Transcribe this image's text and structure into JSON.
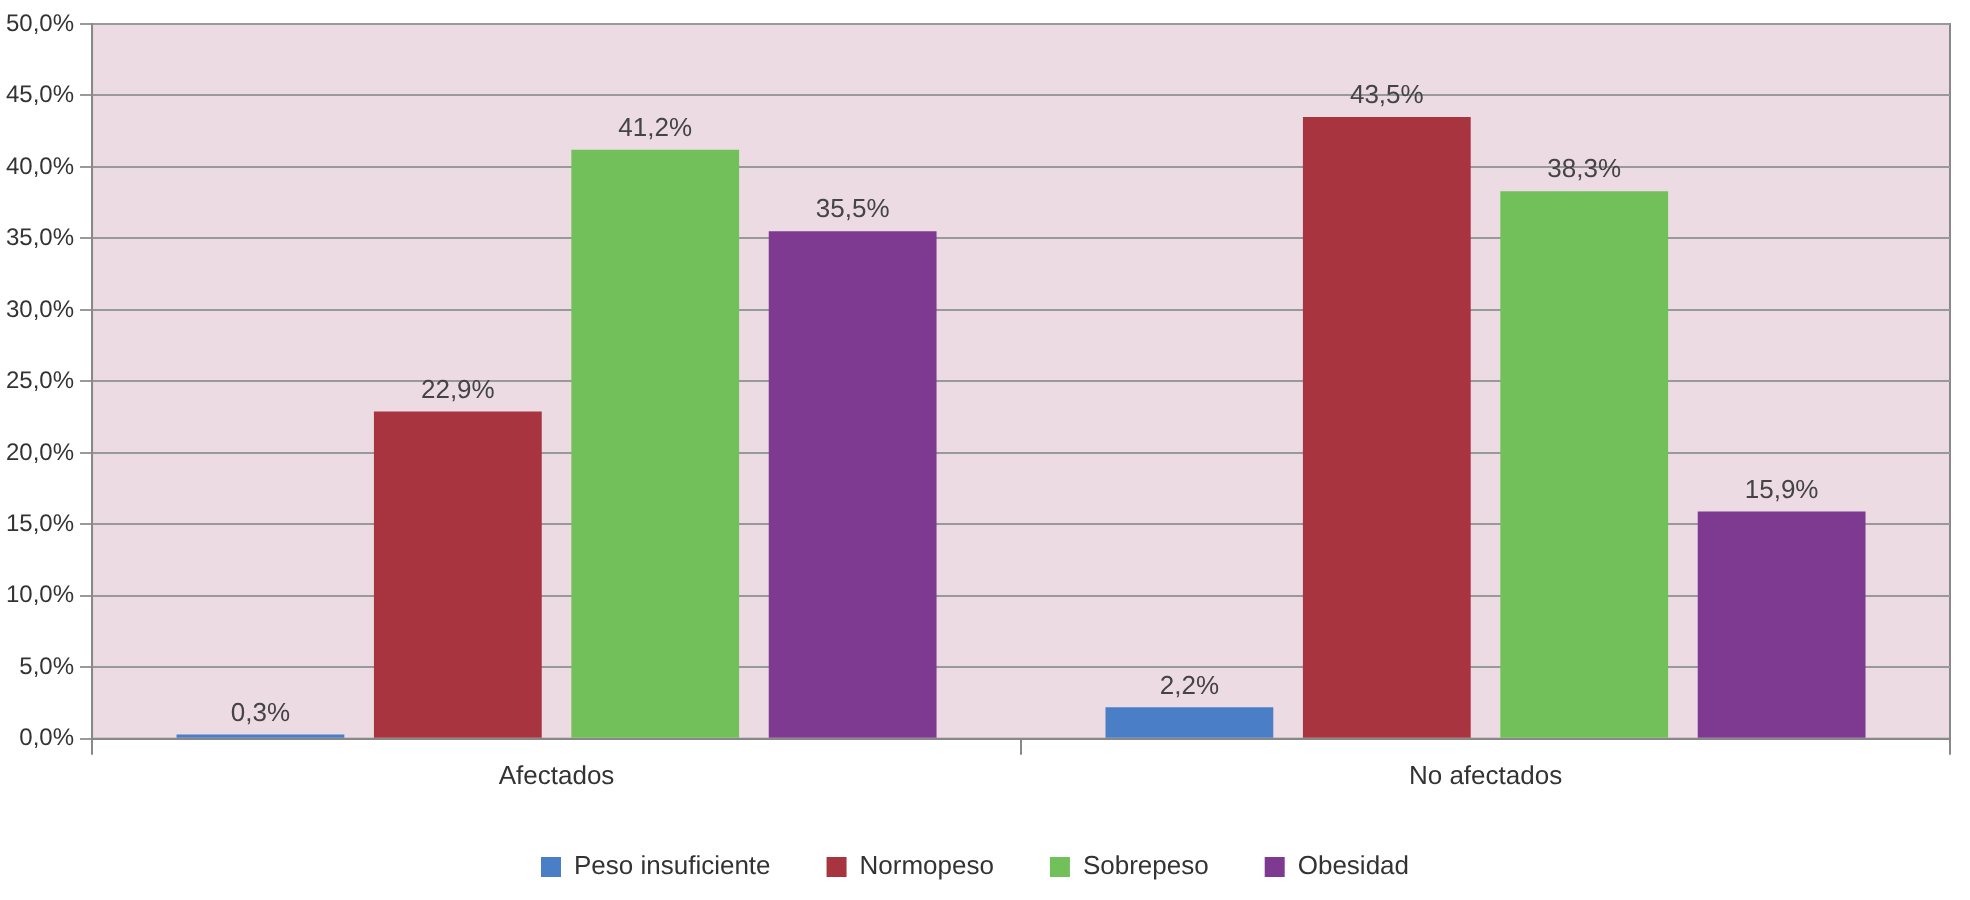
{
  "chart_data": {
    "type": "bar",
    "categories": [
      "Afectados",
      "No afectados"
    ],
    "series": [
      {
        "name": "Peso insuficiente",
        "color": "#4a7fc8",
        "values": [
          0.3,
          2.2
        ],
        "value_labels": [
          "0,3%",
          "2,2%"
        ]
      },
      {
        "name": "Normopeso",
        "color": "#a8343f",
        "values": [
          22.9,
          43.5
        ],
        "value_labels": [
          "22,9%",
          "43,5%"
        ]
      },
      {
        "name": "Sobrepeso",
        "color": "#72c05a",
        "values": [
          41.2,
          38.3
        ],
        "value_labels": [
          "41,2%",
          "38,3%"
        ]
      },
      {
        "name": "Obesidad",
        "color": "#7e3a90",
        "values": [
          35.5,
          15.9
        ],
        "value_labels": [
          "35,5%",
          "15,9%"
        ]
      }
    ],
    "ylim": [
      0,
      50
    ],
    "yticks": [
      {
        "value": 0,
        "label": "0,0%"
      },
      {
        "value": 5,
        "label": "5,0%"
      },
      {
        "value": 10,
        "label": "10,0%"
      },
      {
        "value": 15,
        "label": "15,0%"
      },
      {
        "value": 20,
        "label": "20,0%"
      },
      {
        "value": 25,
        "label": "25,0%"
      },
      {
        "value": 30,
        "label": "30,0%"
      },
      {
        "value": 35,
        "label": "35,0%"
      },
      {
        "value": 40,
        "label": "40,0%"
      },
      {
        "value": 45,
        "label": "45,0%"
      },
      {
        "value": 50,
        "label": "50,0%"
      }
    ],
    "grid": "y",
    "legend": "bottom"
  }
}
